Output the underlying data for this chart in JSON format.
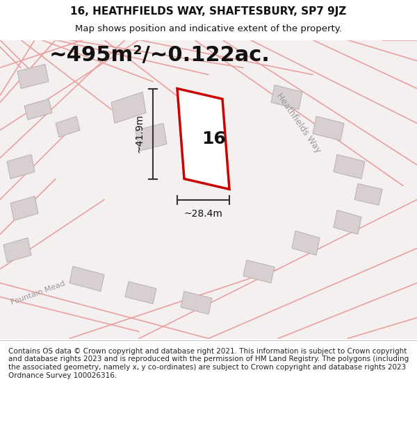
{
  "title_line1": "16, HEATHFIELDS WAY, SHAFTESBURY, SP7 9JZ",
  "title_line2": "Map shows position and indicative extent of the property.",
  "area_text": "~495m²/~0.122ac.",
  "dim_width": "~28.4m",
  "dim_height": "~41.9m",
  "property_number": "16",
  "street_name1": "Heathfields Way",
  "street_name2": "Fountain Mead",
  "footer_text": "Contains OS data © Crown copyright and database right 2021. This information is subject to Crown copyright and database rights 2023 and is reproduced with the permission of HM Land Registry. The polygons (including the associated geometry, namely x, y co-ordinates) are subject to Crown copyright and database rights 2023 Ordnance Survey 100026316.",
  "map_bg": "#f5f0f0",
  "road_color": "#e8a0a0",
  "building_color": "#d8d0d0",
  "building_edge": "#b8b0b0",
  "property_color": "#ffffff",
  "property_edge": "#cc0000",
  "dim_line_color": "#333333",
  "text_color": "#111111",
  "street_text_color": "#999999",
  "title_fontsize": 11,
  "subtitle_fontsize": 9.5,
  "area_fontsize": 22,
  "dim_fontsize": 10,
  "property_num_fontsize": 18,
  "footer_fontsize": 7.5,
  "figsize": [
    6.0,
    6.25
  ],
  "dpi": 100
}
